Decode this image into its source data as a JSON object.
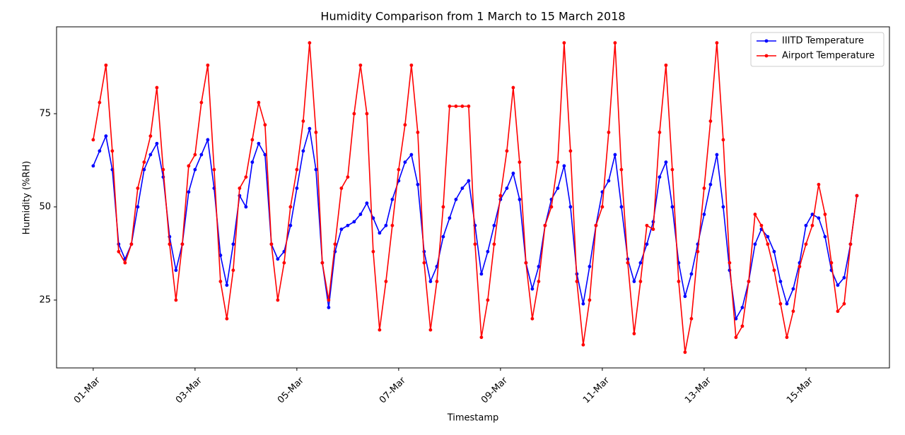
{
  "chart_data": {
    "type": "line",
    "title": "Humidity Comparison from 1 March to 15 March 2018",
    "x_label": "Timestamp",
    "y_label": "Humidity (%RH)",
    "x": [
      0,
      0.125,
      0.25,
      0.375,
      0.5,
      0.625,
      0.75,
      0.875,
      1,
      1.125,
      1.25,
      1.375,
      1.5,
      1.625,
      1.75,
      1.875,
      2,
      2.125,
      2.25,
      2.375,
      2.5,
      2.625,
      2.75,
      2.875,
      3,
      3.125,
      3.25,
      3.375,
      3.5,
      3.625,
      3.75,
      3.875,
      4,
      4.125,
      4.25,
      4.375,
      4.5,
      4.625,
      4.75,
      4.875,
      5,
      5.125,
      5.25,
      5.375,
      5.5,
      5.625,
      5.75,
      5.875,
      6,
      6.125,
      6.25,
      6.375,
      6.5,
      6.625,
      6.75,
      6.875,
      7,
      7.125,
      7.25,
      7.375,
      7.5,
      7.625,
      7.75,
      7.875,
      8,
      8.125,
      8.25,
      8.375,
      8.5,
      8.625,
      8.75,
      8.875,
      9,
      9.125,
      9.25,
      9.375,
      9.5,
      9.625,
      9.75,
      9.875,
      10,
      10.125,
      10.25,
      10.375,
      10.5,
      10.625,
      10.75,
      10.875,
      11,
      11.125,
      11.25,
      11.375,
      11.5,
      11.625,
      11.75,
      11.875,
      12,
      12.125,
      12.25,
      12.375,
      12.5,
      12.625,
      12.75,
      12.875,
      13,
      13.125,
      13.25,
      13.375,
      13.5,
      13.625,
      13.75,
      13.875,
      14,
      14.125,
      14.25,
      14.375,
      14.5,
      14.625,
      14.75,
      14.875,
      15
    ],
    "series": [
      {
        "name": "IIITD Temperature",
        "color": "#0000ff",
        "values": [
          61,
          65,
          69,
          60,
          40,
          36,
          40,
          50,
          60,
          64,
          67,
          58,
          42,
          33,
          40,
          54,
          60,
          64,
          68,
          55,
          37,
          29,
          40,
          53,
          50,
          62,
          67,
          64,
          40,
          36,
          38,
          45,
          55,
          65,
          71,
          60,
          35,
          23,
          38,
          44,
          45,
          46,
          48,
          51,
          47,
          43,
          45,
          52,
          57,
          62,
          64,
          56,
          38,
          30,
          34,
          42,
          47,
          52,
          55,
          57,
          45,
          32,
          38,
          45,
          52,
          55,
          59,
          52,
          35,
          28,
          34,
          45,
          52,
          55,
          61,
          50,
          32,
          24,
          34,
          45,
          54,
          57,
          64,
          50,
          36,
          30,
          35,
          40,
          46,
          58,
          62,
          50,
          35,
          26,
          32,
          40,
          48,
          56,
          64,
          50,
          33,
          20,
          23,
          30,
          40,
          44,
          42,
          38,
          30,
          24,
          28,
          35,
          45,
          48,
          47,
          42,
          33,
          29,
          31,
          40,
          53
        ]
      },
      {
        "name": "Airport Temperature",
        "color": "#ff0000",
        "values": [
          68,
          78,
          88,
          65,
          38,
          35,
          40,
          55,
          62,
          69,
          82,
          60,
          40,
          25,
          40,
          61,
          64,
          78,
          88,
          60,
          30,
          20,
          33,
          55,
          58,
          68,
          78,
          72,
          40,
          25,
          35,
          50,
          60,
          73,
          94,
          70,
          35,
          25,
          40,
          55,
          58,
          75,
          88,
          75,
          38,
          17,
          30,
          45,
          60,
          72,
          88,
          70,
          35,
          17,
          30,
          50,
          77,
          77,
          77,
          77,
          40,
          15,
          25,
          40,
          53,
          65,
          82,
          62,
          35,
          20,
          30,
          45,
          50,
          62,
          94,
          65,
          30,
          13,
          25,
          45,
          50,
          70,
          94,
          60,
          35,
          16,
          30,
          45,
          44,
          70,
          88,
          60,
          30,
          11,
          20,
          38,
          55,
          73,
          94,
          68,
          35,
          15,
          18,
          30,
          48,
          45,
          40,
          33,
          24,
          15,
          22,
          34,
          40,
          45,
          56,
          48,
          35,
          22,
          24,
          40,
          53
        ]
      }
    ],
    "xlim": [
      -0.72,
      15.64
    ],
    "xticks": [
      {
        "value": 0,
        "label": "01-Mar"
      },
      {
        "value": 2,
        "label": "03-Mar"
      },
      {
        "value": 4,
        "label": "05-Mar"
      },
      {
        "value": 6,
        "label": "07-Mar"
      },
      {
        "value": 8,
        "label": "09-Mar"
      },
      {
        "value": 10,
        "label": "11-Mar"
      },
      {
        "value": 12,
        "label": "13-Mar"
      },
      {
        "value": 14,
        "label": "15-Mar"
      }
    ],
    "ylim": [
      6.8,
      98.3
    ],
    "yticks": [
      25,
      50,
      75
    ],
    "grid": false,
    "legend": "upper right"
  }
}
